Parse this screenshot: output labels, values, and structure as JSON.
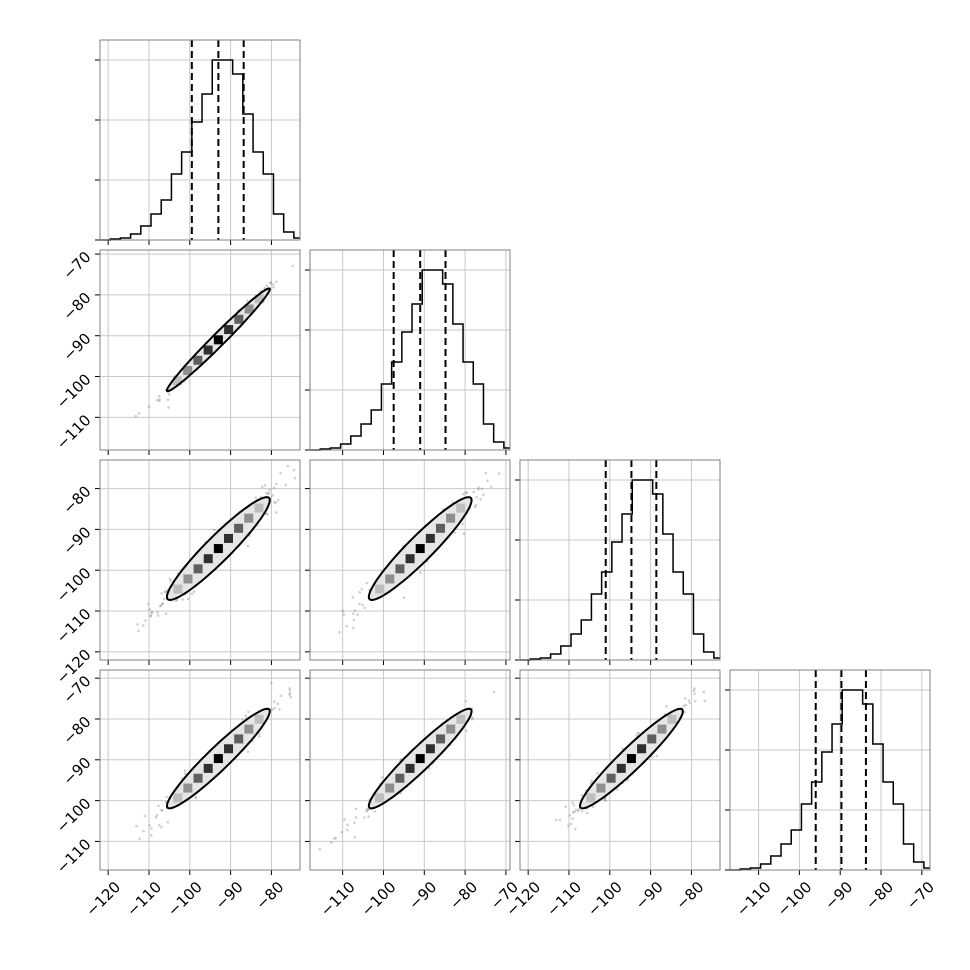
{
  "chart_data": {
    "type": "corner",
    "parameters": 4,
    "grid": true,
    "color": "#000000",
    "quantile_style": "dashed",
    "panels_1d": [
      {
        "param": 0,
        "range": [
          -122,
          -73
        ],
        "quantiles": [
          -99.5,
          -93.0,
          -86.8
        ],
        "bins": [
          -122,
          -119.5,
          -117,
          -114.5,
          -112,
          -109.5,
          -107,
          -104.5,
          -102,
          -99.5,
          -97,
          -94.5,
          -92,
          -89.5,
          -87,
          -84.5,
          -82,
          -79.5,
          -77,
          -74.5,
          -73
        ],
        "counts": [
          0.0,
          0.5,
          1,
          3,
          7,
          13,
          20,
          33,
          44,
          59,
          73,
          90,
          90,
          83,
          63,
          44,
          33,
          13,
          4,
          1
        ]
      },
      {
        "param": 1,
        "range": [
          -118,
          -69
        ],
        "quantiles": [
          -97.5,
          -91.0,
          -84.8
        ],
        "bins": [
          -118,
          -115.5,
          -113,
          -110.5,
          -108,
          -105.5,
          -103,
          -100.5,
          -98,
          -95.5,
          -93,
          -90.5,
          -88,
          -85.5,
          -83,
          -80.5,
          -78,
          -75.5,
          -73,
          -70.5,
          -69
        ],
        "counts": [
          0.0,
          0.5,
          1,
          3,
          7,
          13,
          20,
          33,
          44,
          59,
          73,
          90,
          90,
          83,
          63,
          44,
          33,
          13,
          4,
          1
        ]
      },
      {
        "param": 2,
        "range": [
          -122,
          -73
        ],
        "quantiles": [
          -101.0,
          -94.7,
          -88.6
        ],
        "bins": [
          -122,
          -119.5,
          -117,
          -114.5,
          -112,
          -109.5,
          -107,
          -104.5,
          -102,
          -99.5,
          -97,
          -94.5,
          -92,
          -89.5,
          -87,
          -84.5,
          -82,
          -79.5,
          -77,
          -74.5,
          -73
        ],
        "counts": [
          0.0,
          0.5,
          1,
          3,
          7,
          13,
          20,
          33,
          44,
          59,
          73,
          90,
          90,
          83,
          63,
          44,
          33,
          13,
          4,
          1
        ]
      },
      {
        "param": 3,
        "range": [
          -117,
          -68
        ],
        "quantiles": [
          -96.0,
          -89.7,
          -83.7
        ],
        "bins": [
          -117,
          -114.5,
          -112,
          -109.5,
          -107,
          -104.5,
          -102,
          -99.5,
          -97,
          -94.5,
          -92,
          -89.5,
          -87,
          -84.5,
          -82,
          -79.5,
          -77,
          -74.5,
          -72,
          -69.5,
          -68
        ],
        "counts": [
          0.0,
          0.5,
          1,
          3,
          7,
          13,
          20,
          33,
          44,
          59,
          73,
          90,
          90,
          83,
          63,
          44,
          33,
          13,
          4,
          1
        ]
      }
    ],
    "x_ticks": [
      [
        -120,
        -110,
        -100,
        -90,
        -80
      ],
      [
        -110,
        -100,
        -90,
        -80,
        -70
      ],
      [
        -120,
        -110,
        -100,
        -90,
        -80
      ],
      [
        -110,
        -100,
        -90,
        -80,
        -70
      ]
    ],
    "x_tick_labels": [
      [
        "−120",
        "−110",
        "−100",
        "−90",
        "−80"
      ],
      [
        "−110",
        "−100",
        "−90",
        "−80",
        "−70"
      ],
      [
        "−120",
        "−110",
        "−100",
        "−90",
        "−80"
      ],
      [
        "−110",
        "−100",
        "−90",
        "−80",
        "−70"
      ]
    ],
    "y_ticks": {
      "1": [
        -110,
        -100,
        -90,
        -80,
        -70
      ],
      "2": [
        -120,
        -110,
        -100,
        -90,
        -80
      ],
      "3": [
        -110,
        -100,
        -90,
        -80,
        -70
      ]
    },
    "y_tick_labels": {
      "1": [
        "−110",
        "−100",
        "−90",
        "−80",
        "−70"
      ],
      "2": [
        "−120",
        "−110",
        "−100",
        "−90",
        "−80"
      ],
      "3": [
        "−110",
        "−100",
        "−90",
        "−80",
        "−70"
      ]
    },
    "panels_2d": [
      {
        "row": 1,
        "col": 0,
        "center": [
          -93,
          -91
        ],
        "sigma": [
          6.3,
          6.3
        ],
        "corr": 0.985
      },
      {
        "row": 2,
        "col": 0,
        "center": [
          -93,
          -94.7
        ],
        "sigma": [
          6.3,
          6.3
        ],
        "corr": 0.94
      },
      {
        "row": 2,
        "col": 1,
        "center": [
          -91,
          -94.7
        ],
        "sigma": [
          6.3,
          6.3
        ],
        "corr": 0.94
      },
      {
        "row": 3,
        "col": 0,
        "center": [
          -93,
          -89.7
        ],
        "sigma": [
          6.3,
          6.1
        ],
        "corr": 0.95
      },
      {
        "row": 3,
        "col": 1,
        "center": [
          -91,
          -89.7
        ],
        "sigma": [
          6.3,
          6.1
        ],
        "corr": 0.95
      },
      {
        "row": 3,
        "col": 2,
        "center": [
          -94.7,
          -89.7
        ],
        "sigma": [
          6.3,
          6.1
        ],
        "corr": 0.95
      }
    ],
    "contour_levels_sigma": [
      0.5,
      2.0
    ]
  }
}
